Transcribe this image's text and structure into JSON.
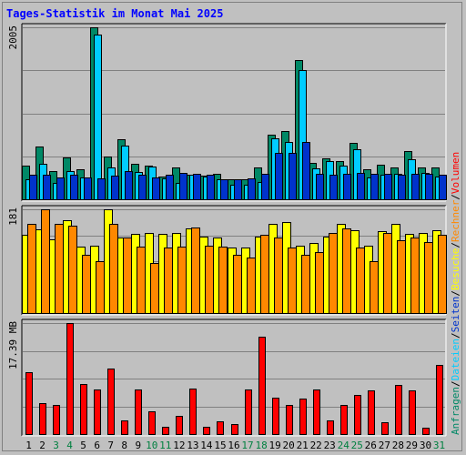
{
  "title": "Tages-Statistik im Monat Mai 2025",
  "colors": {
    "background": "#c0c0c0",
    "title": "#0000ff",
    "hits": "#008866",
    "files": "#00ccff",
    "pages": "#0033cc",
    "visits": "#ffff00",
    "sites": "#ff8800",
    "kbytes": "#ff0000",
    "weekend_day": "#008040",
    "weekday": "#000000",
    "legend_slash": "#000000"
  },
  "legend_right": [
    {
      "text": "Anfragen",
      "color_key": "hits"
    },
    {
      "text": "Dateien",
      "color_key": "files"
    },
    {
      "text": "Seiten",
      "color_key": "pages"
    },
    {
      "text": "Besuche",
      "color_key": "visits"
    },
    {
      "text": "Rechner",
      "color_key": "sites"
    },
    {
      "text": "Volumen",
      "color_key": "kbytes"
    }
  ],
  "chart_data": {
    "type": "bar",
    "title": "Tages-Statistik im Monat Mai 2025",
    "categories": [
      "1",
      "2",
      "3",
      "4",
      "5",
      "6",
      "7",
      "8",
      "9",
      "10",
      "11",
      "12",
      "13",
      "14",
      "15",
      "16",
      "17",
      "18",
      "19",
      "20",
      "21",
      "22",
      "23",
      "24",
      "25",
      "26",
      "27",
      "28",
      "29",
      "30",
      "31"
    ],
    "weekend_days": [
      3,
      4,
      10,
      11,
      17,
      18,
      24,
      25,
      31
    ],
    "panels": [
      {
        "id": "requests",
        "max_label": "2005",
        "ylim": [
          0,
          2005
        ],
        "series": [
          {
            "name": "Anfragen",
            "color_key": "hits",
            "values": [
              390,
              620,
              330,
              490,
              350,
              2005,
              500,
              700,
              410,
              390,
              270,
              370,
              290,
              280,
              300,
              230,
              230,
              370,
              750,
              800,
              1620,
              420,
              480,
              450,
              660,
              350,
              400,
              370,
              560,
              370,
              370
            ]
          },
          {
            "name": "Dateien",
            "color_key": "files",
            "values": [
              230,
              410,
              190,
              330,
              250,
              1920,
              370,
              630,
              320,
              380,
              240,
              190,
              290,
              270,
              230,
              170,
              170,
              200,
              710,
              670,
              1510,
              360,
              450,
              390,
              580,
              250,
              290,
              300,
              470,
              310,
              270
            ]
          },
          {
            "name": "Seiten",
            "color_key": "pages",
            "values": [
              290,
              290,
              250,
              290,
              250,
              240,
              280,
              330,
              290,
              250,
              290,
              310,
              300,
              290,
              230,
              230,
              240,
              300,
              540,
              540,
              670,
              300,
              290,
              300,
              310,
              300,
              300,
              290,
              300,
              300,
              290
            ]
          }
        ]
      },
      {
        "id": "visits",
        "max_label": "181",
        "ylim": [
          0,
          181
        ],
        "series": [
          {
            "name": "Besuche",
            "color_key": "visits",
            "values": [
              136,
              146,
              128,
              162,
              116,
              117,
              181,
              131,
              138,
              140,
              138,
              140,
              148,
              134,
              131,
              114,
              114,
              133,
              156,
              159,
              118,
              123,
              133,
              155,
              145,
              118,
              143,
              155,
              138,
              140,
              144
            ]
          },
          {
            "name": "Rechner",
            "color_key": "sites",
            "values": [
              155,
              181,
              156,
              152,
              102,
              91,
              155,
              131,
              116,
              87,
              114,
              116,
              150,
              117,
              116,
              101,
              97,
              136,
              132,
              115,
              102,
              107,
              139,
              147,
              115,
              91,
              139,
              127,
              131,
              124,
              136
            ]
          }
        ]
      },
      {
        "id": "volume",
        "max_label": "17.39 MB",
        "ylim": [
          0,
          17.39
        ],
        "series": [
          {
            "name": "Volumen",
            "color_key": "kbytes",
            "values": [
              9.7,
              4.8,
              4.6,
              17.39,
              7.9,
              7.0,
              10.3,
              2.2,
              7.0,
              3.5,
              1.2,
              2.9,
              7.1,
              1.2,
              2.0,
              1.5,
              7.0,
              15.2,
              5.7,
              4.5,
              5.5,
              7.0,
              2.1,
              4.5,
              6.1,
              6.8,
              1.8,
              7.7,
              6.8,
              1.0,
              10.8
            ]
          }
        ]
      }
    ]
  }
}
